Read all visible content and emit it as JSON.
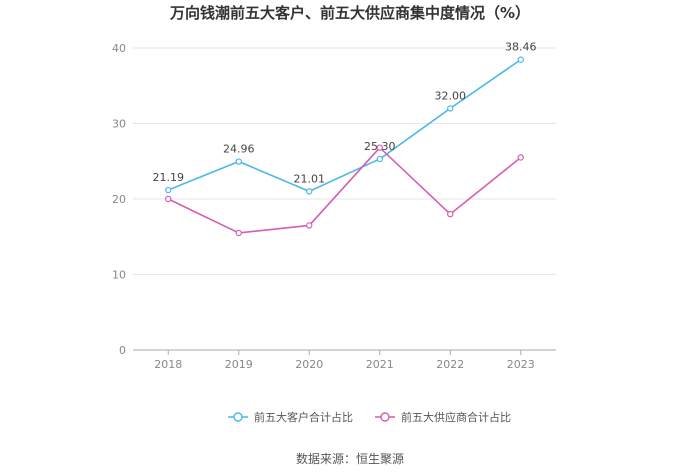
{
  "chart_data": {
    "type": "line",
    "title": "万向钱潮前五大客户、前五大供应商集中度情况（%）",
    "categories": [
      "2018",
      "2019",
      "2020",
      "2021",
      "2022",
      "2023"
    ],
    "ylim": [
      0,
      40
    ],
    "yticks": [
      0,
      10,
      20,
      30,
      40
    ],
    "grid": true,
    "legend_position": "bottom",
    "series": [
      {
        "name": "前五大客户合计占比",
        "color": "#4ab8e8",
        "values": [
          21.19,
          24.96,
          21.01,
          25.3,
          32.0,
          38.46
        ],
        "labels": [
          "21.19",
          "24.96",
          "21.01",
          "25.30",
          "32.00",
          "38.46"
        ]
      },
      {
        "name": "前五大供应商合计占比",
        "color": "#d45fb0",
        "values": [
          20.0,
          15.5,
          16.5,
          26.8,
          18.0,
          25.5
        ],
        "labels": []
      }
    ]
  },
  "source": "数据来源：恒生聚源"
}
